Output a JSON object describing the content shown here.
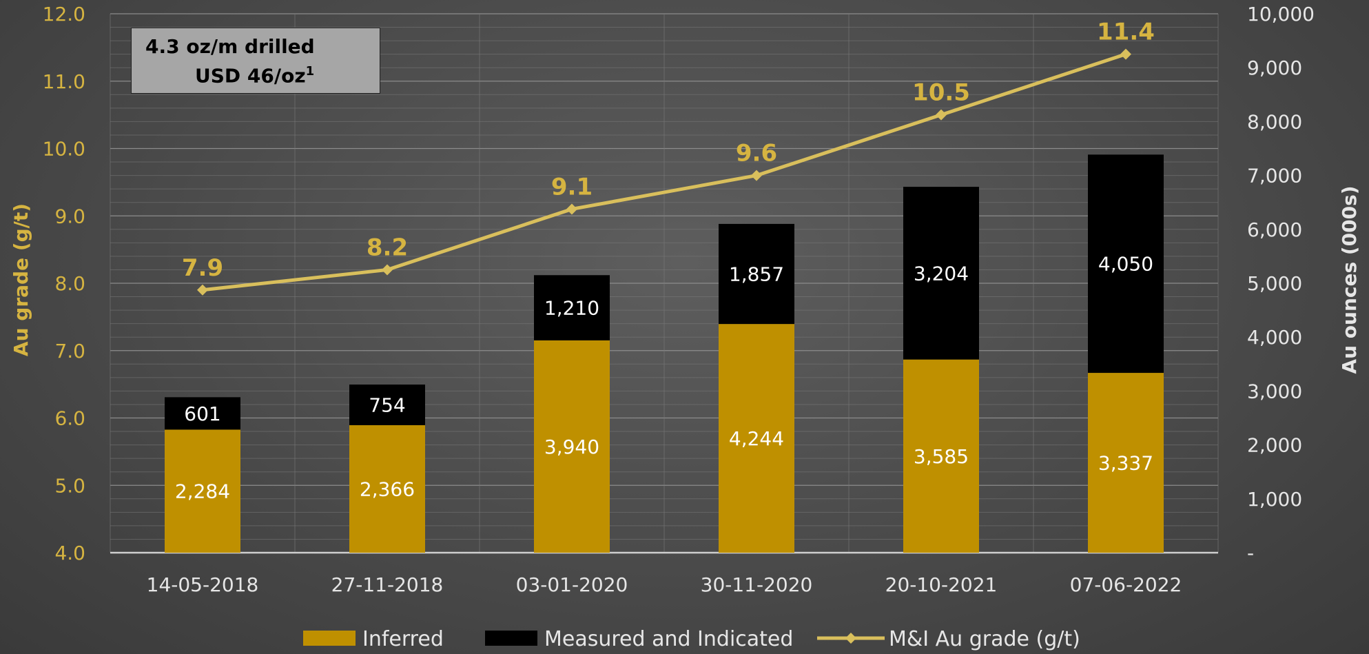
{
  "note": {
    "line1": "4.3 oz/m drilled",
    "line2": "USD 46/oz",
    "line2_superscript": "1"
  },
  "colors": {
    "inferred": "#bf9000",
    "measured_indicated": "#000000",
    "grade_line": "#d9bf5c",
    "left_axis_text": "#d6b441",
    "right_axis_text": "#e6e6e6"
  },
  "chart_data": {
    "type": "bar",
    "stacked": true,
    "categories": [
      "14-05-2018",
      "27-11-2018",
      "03-01-2020",
      "30-11-2020",
      "20-10-2021",
      "07-06-2022"
    ],
    "series": [
      {
        "name": "Inferred",
        "axis": "right",
        "values": [
          2284,
          2366,
          3940,
          4244,
          3585,
          3337
        ],
        "labels": [
          "2,284",
          "2,366",
          "3,940",
          "4,244",
          "3,585",
          "3,337"
        ]
      },
      {
        "name": "Measured and Indicated",
        "axis": "right",
        "values": [
          601,
          754,
          1210,
          1857,
          3204,
          4050
        ],
        "labels": [
          "601",
          "754",
          "1,210",
          "1,857",
          "3,204",
          "4,050"
        ]
      },
      {
        "name": "M&I Au grade (g/t)",
        "type": "line",
        "axis": "left",
        "values": [
          7.9,
          8.2,
          9.1,
          9.6,
          10.5,
          11.4
        ],
        "labels": [
          "7.9",
          "8.2",
          "9.1",
          "9.6",
          "10.5",
          "11.4"
        ]
      }
    ],
    "y_left": {
      "label": "Au grade (g/t)",
      "range": [
        4.0,
        12.0
      ],
      "ticks": [
        "4.0",
        "5.0",
        "6.0",
        "7.0",
        "8.0",
        "9.0",
        "10.0",
        "11.0",
        "12.0"
      ]
    },
    "y_right": {
      "label": "Au ounces (000s)",
      "range": [
        0,
        10000
      ],
      "ticks": [
        "-",
        "1,000",
        "2,000",
        "3,000",
        "4,000",
        "5,000",
        "6,000",
        "7,000",
        "8,000",
        "9,000",
        "10,000"
      ]
    },
    "legend": {
      "position": "bottom",
      "entries": [
        "Inferred",
        "Measured and Indicated",
        "M&I Au grade (g/t)"
      ]
    },
    "grid": true
  }
}
